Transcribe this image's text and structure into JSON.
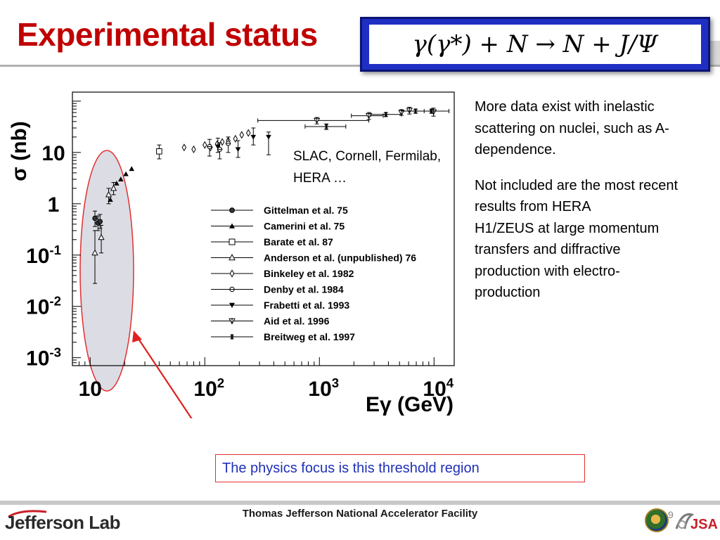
{
  "slide": {
    "title": "Experimental status",
    "equation": "γ(γ*) + N → N + J/Ψ",
    "annotation_lines": [
      "SLAC, Cornell, Fermilab,",
      "HERA …"
    ],
    "side_para1_lines": [
      "More data exist with inelastic",
      "scattering on nuclei, such as A-",
      "dependence."
    ],
    "side_para2_lines": [
      "Not included are the most recent",
      "results from HERA",
      "H1/ZEUS at large momentum",
      "transfers and diffractive",
      "production with electro-",
      "production"
    ],
    "focus_note": "The physics focus is this threshold region",
    "footer_center": "Thomas Jefferson National Accelerator Facility",
    "footer_left": "Jefferson Lab",
    "footer_right": "JSA",
    "page_number": "9",
    "colors": {
      "title": "#c00000",
      "equation_frame": "#1f2fc4",
      "focus_text": "#1f30b8",
      "highlight_border": "#e23030",
      "highlight_fill": "#dcdce4"
    }
  },
  "chart_data": {
    "type": "scatter",
    "xscale": "log",
    "yscale": "log",
    "xlim": [
      7,
      15000
    ],
    "ylim": [
      0.0007,
      150
    ],
    "xlabel": "Eγ (GeV)",
    "ylabel": "σ (nb)",
    "xticks": [
      {
        "value": 10,
        "base": "10",
        "exp": ""
      },
      {
        "value": 100,
        "base": "10",
        "exp": "2"
      },
      {
        "value": 1000,
        "base": "10",
        "exp": "3"
      },
      {
        "value": 10000,
        "base": "10",
        "exp": "4"
      }
    ],
    "yticks": [
      {
        "value": 10,
        "base": "10",
        "exp": ""
      },
      {
        "value": 1,
        "base": "1",
        "exp": ""
      },
      {
        "value": 0.1,
        "base": "10",
        "exp": "-1"
      },
      {
        "value": 0.01,
        "base": "10",
        "exp": "-2"
      },
      {
        "value": 0.001,
        "base": "10",
        "exp": "-3"
      }
    ],
    "legend_position": "center-right",
    "series": [
      {
        "name": "Gittelman et al. 75",
        "marker": "filled-circle",
        "points": [
          {
            "x": 11.0,
            "y": 0.52,
            "ylo": 0.36,
            "yhi": 0.72
          },
          {
            "x": 11.7,
            "y": 0.42,
            "ylo": 0.3,
            "yhi": 0.58
          },
          {
            "x": 12.2,
            "y": 0.45,
            "ylo": 0.33,
            "yhi": 0.62
          }
        ]
      },
      {
        "name": "Camerini et al. 75",
        "marker": "filled-triangle",
        "points": [
          {
            "x": 15.0,
            "y": 1.2
          },
          {
            "x": 17.0,
            "y": 2.5
          },
          {
            "x": 18.5,
            "y": 3.0
          },
          {
            "x": 20.5,
            "y": 3.8
          },
          {
            "x": 23.0,
            "y": 4.8
          }
        ]
      },
      {
        "name": "Barate et al. 87",
        "marker": "open-square",
        "points": [
          {
            "x": 40.0,
            "y": 10.5,
            "ylo": 7.5,
            "yhi": 14.0
          }
        ]
      },
      {
        "name": "Anderson et al. (unpublished) 76",
        "marker": "open-triangle",
        "points": [
          {
            "x": 11.0,
            "y": 0.11,
            "ylo": 0.028,
            "yhi": 0.3
          },
          {
            "x": 12.5,
            "y": 0.22,
            "ylo": 0.11,
            "yhi": 0.38
          },
          {
            "x": 14.5,
            "y": 1.5,
            "ylo": 1.0,
            "yhi": 2.0
          },
          {
            "x": 16.0,
            "y": 2.0,
            "ylo": 1.5,
            "yhi": 2.6
          }
        ]
      },
      {
        "name": "Binkeley et al. 1982",
        "marker": "open-diamond",
        "points": [
          {
            "x": 66.0,
            "y": 12.5
          },
          {
            "x": 80.0,
            "y": 11.5
          },
          {
            "x": 100.0,
            "y": 14.0
          },
          {
            "x": 112.0,
            "y": 12.5
          },
          {
            "x": 128.0,
            "y": 14.5
          },
          {
            "x": 142.0,
            "y": 16.0
          },
          {
            "x": 160.0,
            "y": 17.0
          },
          {
            "x": 185.0,
            "y": 18.5
          },
          {
            "x": 210.0,
            "y": 22.0
          },
          {
            "x": 240.0,
            "y": 24.0
          }
        ]
      },
      {
        "name": "Denby et al. 1984",
        "marker": "open-circle-cross",
        "points": [
          {
            "x": 110.0,
            "y": 13.0,
            "ylo": 8.5,
            "yhi": 18.0
          },
          {
            "x": 135.0,
            "y": 11.5,
            "ylo": 7.5,
            "yhi": 15.5
          },
          {
            "x": 160.0,
            "y": 15.0,
            "ylo": 10.0,
            "yhi": 20.0
          }
        ]
      },
      {
        "name": "Frabetti et al. 1993",
        "marker": "filled-downtriangle",
        "points": [
          {
            "x": 130.0,
            "y": 13.0,
            "ylo": 10.0,
            "yhi": 19.0
          },
          {
            "x": 195.0,
            "y": 11.5,
            "ylo": 8.0,
            "yhi": 17.0
          },
          {
            "x": 265.0,
            "y": 20.0,
            "ylo": 14.0,
            "yhi": 30.0
          },
          {
            "x": 360.0,
            "y": 20.0,
            "ylo": 9.0,
            "yhi": 25.0
          }
        ]
      },
      {
        "name": "Aid et al. 1996",
        "marker": "open-star",
        "points": [
          {
            "x": 950.0,
            "y": 42.0,
            "ylo": 36.0,
            "yhi": 48.0,
            "xlo": 290.0,
            "xhi": 2700.0
          },
          {
            "x": 2700.0,
            "y": 52.0,
            "ylo": 44.0,
            "yhi": 60.0,
            "xlo": 1900.0,
            "xhi": 3600.0
          },
          {
            "x": 5200.0,
            "y": 60.0,
            "ylo": 53.0,
            "yhi": 68.0
          },
          {
            "x": 6100.0,
            "y": 66.0,
            "ylo": 56.0,
            "yhi": 76.0
          },
          {
            "x": 9900.0,
            "y": 62.0,
            "ylo": 51.0,
            "yhi": 73.0
          }
        ]
      },
      {
        "name": "Breitweg et al. 1997",
        "marker": "asterisk",
        "points": [
          {
            "x": 1150.0,
            "y": 32.0,
            "ylo": 28.0,
            "yhi": 36.0,
            "xlo": 750.0,
            "xhi": 1700.0
          },
          {
            "x": 3800.0,
            "y": 55.0,
            "ylo": 50.0,
            "yhi": 60.0,
            "xlo": 2800.0,
            "xhi": 5200.0
          },
          {
            "x": 6900.0,
            "y": 64.0,
            "ylo": 58.0,
            "yhi": 70.0,
            "xlo": 5200.0,
            "xhi": 9300.0
          },
          {
            "x": 9500.0,
            "y": 64.0,
            "ylo": 58.0,
            "yhi": 70.0,
            "xlo": 8200.0,
            "xhi": 13500.0
          }
        ]
      }
    ]
  }
}
